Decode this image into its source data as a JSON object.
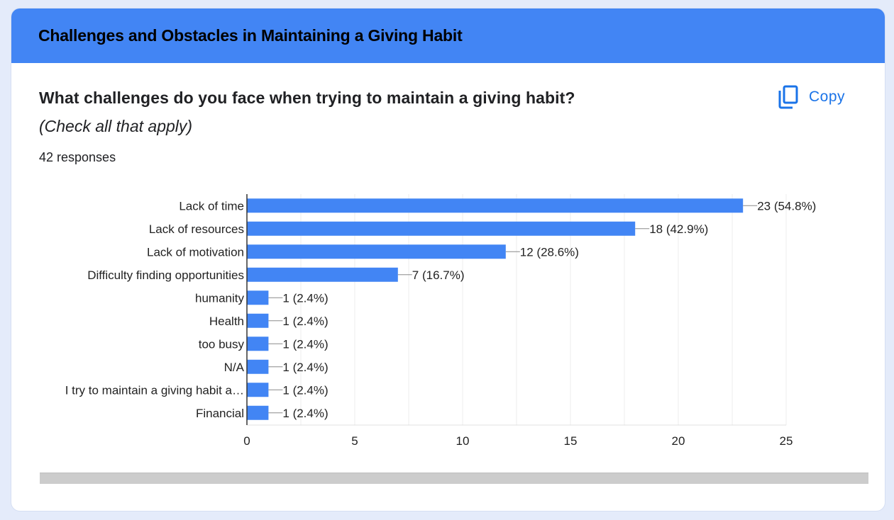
{
  "section": {
    "title": "Challenges and Obstacles in Maintaining a Giving Habit"
  },
  "question": {
    "title": "What challenges do you face when trying to maintain a giving habit?",
    "subtitle": "(Check all that apply)",
    "responses": "42 responses"
  },
  "copy_button": {
    "label": "Copy",
    "icon": "copy-icon"
  },
  "colors": {
    "header": "#4285f4",
    "bar": "#4285f4",
    "accent": "#1a73e8"
  },
  "chart_data": {
    "type": "bar",
    "orientation": "horizontal",
    "categories": [
      "Lack of time",
      "Lack of resources",
      "Lack of motivation",
      "Difficulty finding opportunities",
      "humanity",
      "Health",
      "too busy",
      "N/A",
      "I try to maintain a giving habit a…",
      "Financial"
    ],
    "values": [
      23,
      18,
      12,
      7,
      1,
      1,
      1,
      1,
      1,
      1
    ],
    "data_labels": [
      "23 (54.8%)",
      "18 (42.9%)",
      "12 (28.6%)",
      "7 (16.7%)",
      "1 (2.4%)",
      "1 (2.4%)",
      "1 (2.4%)",
      "1 (2.4%)",
      "1 (2.4%)",
      "1 (2.4%)"
    ],
    "xlim": [
      0,
      25
    ],
    "xticks": [
      0,
      5,
      10,
      15,
      20,
      25
    ],
    "grid": true,
    "title": "",
    "xlabel": "",
    "ylabel": ""
  }
}
